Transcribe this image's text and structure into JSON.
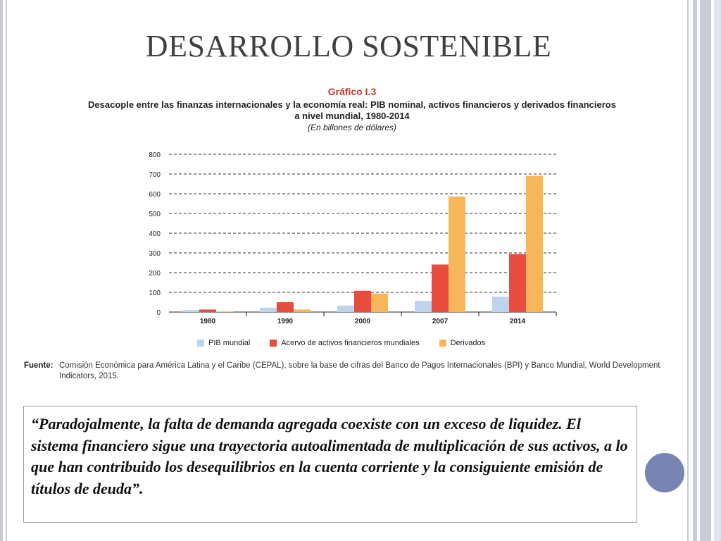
{
  "slide": {
    "title": "DESARROLLO SOSTENIBLE"
  },
  "chart_data": {
    "type": "bar",
    "label": "Gráfico I.3",
    "title": "Desacople entre las finanzas internacionales y la economía real: PIB nominal, activos financieros y derivados financieros a nivel mundial, 1980-2014",
    "subtitle": "(En billones de dólares)",
    "categories": [
      "1980",
      "1990",
      "2000",
      "2007",
      "2014"
    ],
    "series": [
      {
        "name": "PIB mundial",
        "color": "#bed4ec",
        "values": [
          10,
          22,
          33,
          57,
          78
        ]
      },
      {
        "name": "Acervo de activos financieros mundiales",
        "color": "#e84c3d",
        "values": [
          13,
          50,
          108,
          241,
          294
        ]
      },
      {
        "name": "Derivados",
        "color": "#f8b65a",
        "values": [
          3,
          13,
          94,
          586,
          691
        ]
      }
    ],
    "ylim": [
      0,
      800
    ],
    "yticks": [
      "0",
      "100",
      "200",
      "300",
      "400",
      "500",
      "600",
      "700",
      "800"
    ],
    "grid": true,
    "legend_position": "bottom"
  },
  "source": {
    "label": "Fuente:",
    "text": "Comisión Económica para América Latina y el Caribe (CEPAL), sobre la base de cifras del Banco de Pagos Internacionales (BPI) y Banco Mundial, World Development Indicators, 2015."
  },
  "quote": {
    "text": "“Paradojalmente, la falta de demanda agregada coexiste con un exceso de liquidez. El sistema financiero sigue una trayectoria autoalimentada de multiplicación de sus activos, a lo que han contribuido los desequilibrios en la cuenta corriente y la consiguiente emisión de títulos de deuda”."
  }
}
